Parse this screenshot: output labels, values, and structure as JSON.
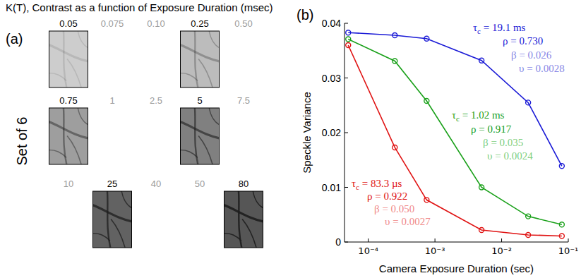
{
  "title": "K(T), Contrast as a function of Exposure Duration (msec)",
  "panel_a": {
    "letter": "(a)",
    "side_label": "Set of 6",
    "rows": [
      [
        {
          "label": "0.05",
          "image": true
        },
        {
          "label": "0.075",
          "image": false
        },
        {
          "label": "0.10",
          "image": false
        },
        {
          "label": "0.25",
          "image": true
        },
        {
          "label": "0.50",
          "image": false
        }
      ],
      [
        {
          "label": "0.75",
          "image": true
        },
        {
          "label": "1",
          "image": false
        },
        {
          "label": "2.5",
          "image": false
        },
        {
          "label": "5",
          "image": true
        },
        {
          "label": "7.5",
          "image": false
        }
      ],
      [
        {
          "label": "10",
          "image": false
        },
        {
          "label": "25",
          "image": true
        },
        {
          "label": "40",
          "image": false
        },
        {
          "label": "50",
          "image": false
        },
        {
          "label": "80",
          "image": true
        }
      ]
    ]
  },
  "chart_data": {
    "type": "line",
    "letter": "(b)",
    "x_label": "Camera Exposure Duration (sec)",
    "y_label": "Speckle Variance",
    "log": "x",
    "x": [
      5e-05,
      0.00025,
      0.00075,
      0.005,
      0.025,
      0.08
    ],
    "xlim": [
      4.4e-05,
      0.1
    ],
    "xticks": [
      {
        "value": 0.0001,
        "label": "10⁻⁴"
      },
      {
        "value": 0.001,
        "label": "10⁻³"
      },
      {
        "value": 0.01,
        "label": "10⁻²"
      },
      {
        "value": 0.1,
        "label": "10⁻¹"
      }
    ],
    "ylim": [
      0,
      0.04
    ],
    "yticks": [
      0,
      0.01,
      0.02,
      0.03,
      0.04
    ],
    "series": [
      {
        "color": "#1a1ad6",
        "marker": "circle",
        "line_style": "solid",
        "values": [
          0.0383,
          0.0378,
          0.0372,
          0.0332,
          0.0255,
          0.0139
        ]
      },
      {
        "color": "#19a019",
        "marker": "circle",
        "line_style": "solid",
        "values": [
          0.0371,
          0.0331,
          0.0258,
          0.01,
          0.0047,
          0.0032
        ]
      },
      {
        "color": "#e01414",
        "marker": "circle",
        "line_style": "solid",
        "values": [
          0.036,
          0.0173,
          0.0077,
          0.0022,
          0.0013,
          0.0011
        ]
      }
    ],
    "annotations": [
      {
        "text": "τc = 19.1 ms",
        "color": "#1a1ad6"
      },
      {
        "text": "ρ = 0.730",
        "color": "#1a1ad6"
      },
      {
        "text": "β = 0.026",
        "color": "#8a8ae6"
      },
      {
        "text": "υ = 0.0028",
        "color": "#8a8ae6"
      },
      {
        "text": "τc = 1.02 ms",
        "color": "#19a019"
      },
      {
        "text": "ρ = 0.917",
        "color": "#19a019"
      },
      {
        "text": "β = 0.035",
        "color": "#7fcf7f"
      },
      {
        "text": "υ = 0.0024",
        "color": "#7fcf7f"
      },
      {
        "text": "τc = 83.3 µs",
        "color": "#e01414"
      },
      {
        "text": "ρ = 0.922",
        "color": "#e01414"
      },
      {
        "text": "β = 0.050",
        "color": "#f08a8a"
      },
      {
        "text": "υ = 0.0027",
        "color": "#f08a8a"
      }
    ]
  }
}
